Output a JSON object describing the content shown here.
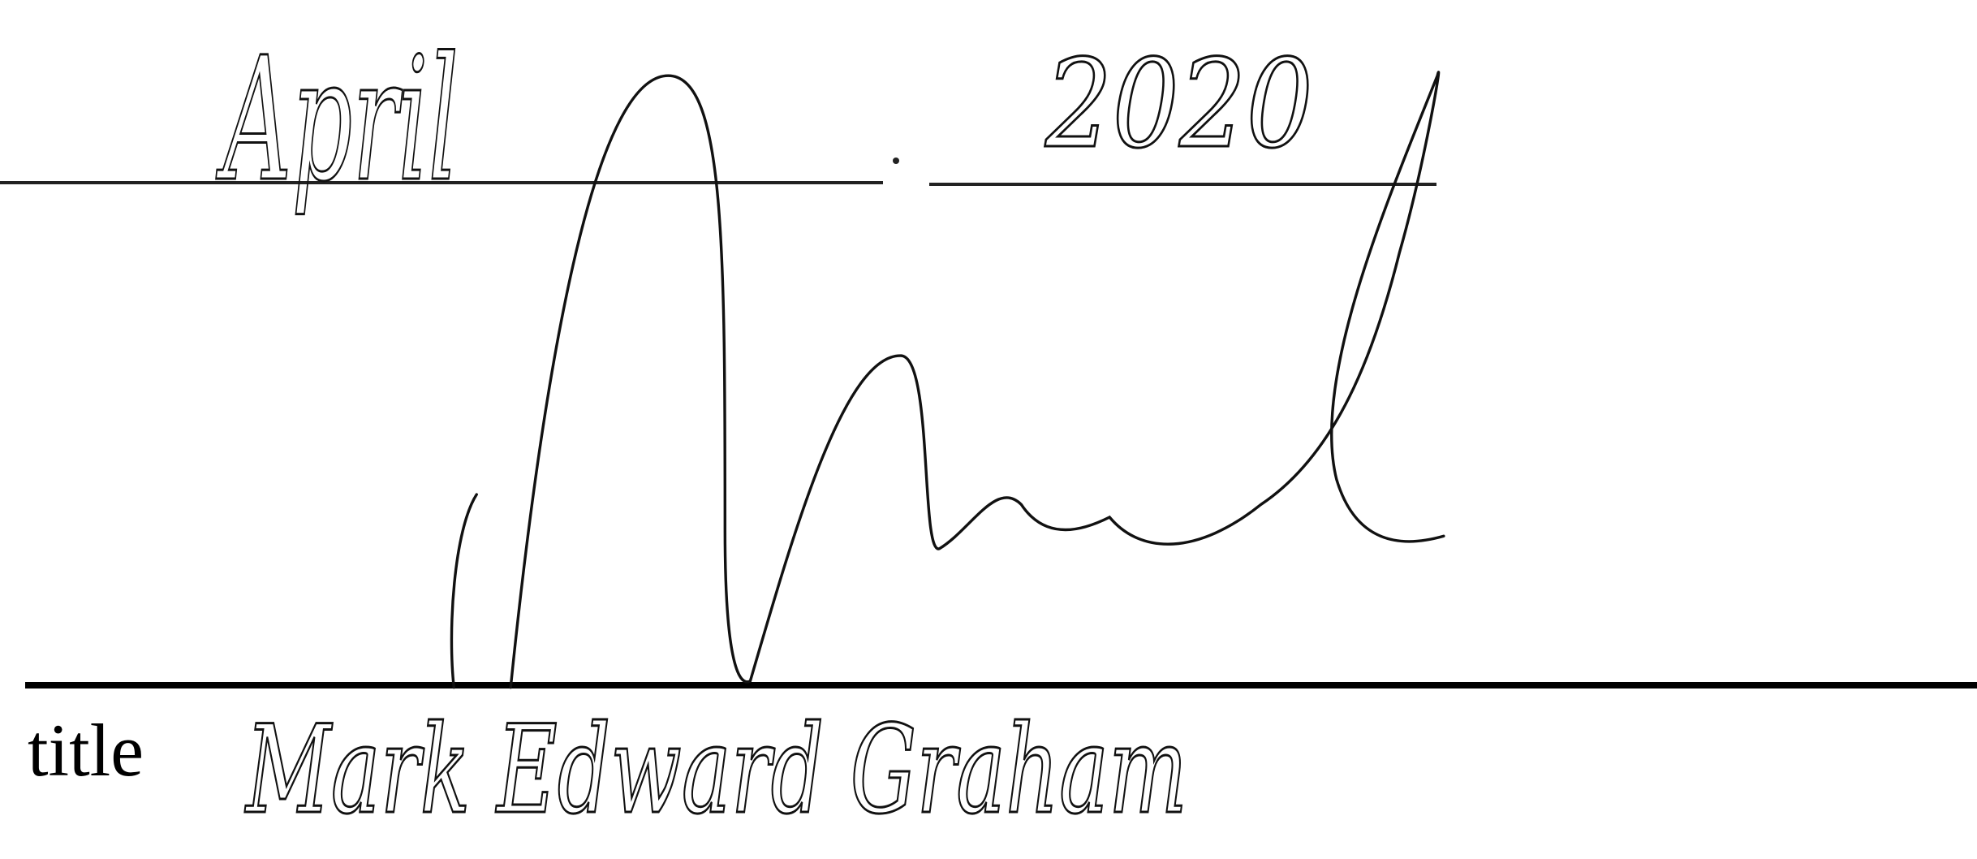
{
  "date": {
    "month": "April",
    "year": "2020"
  },
  "signature_block": {
    "label": "title",
    "printed_name": "Mark Edward Graham"
  }
}
